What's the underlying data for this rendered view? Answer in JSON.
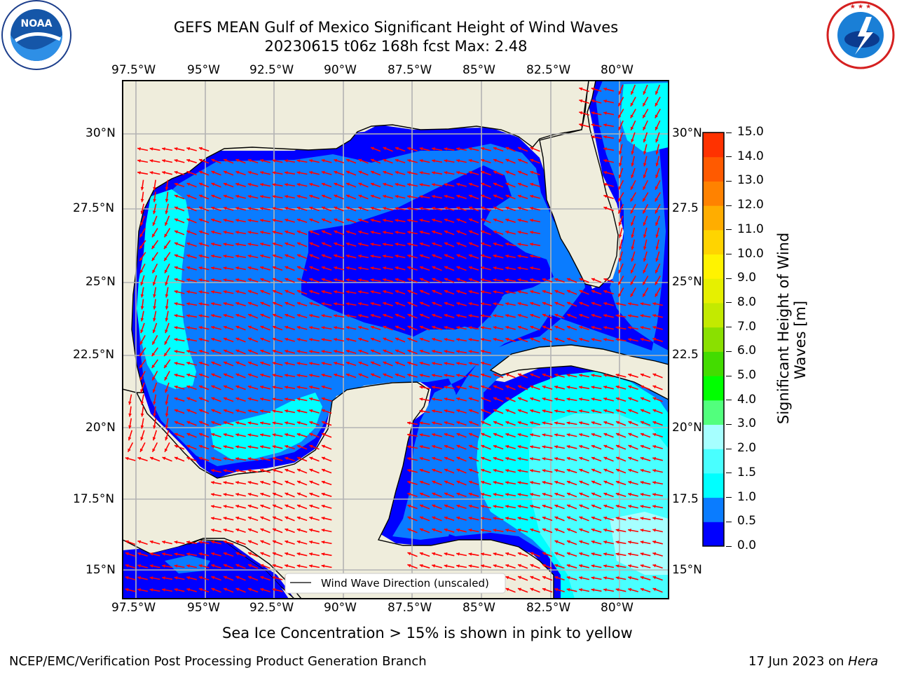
{
  "header": {
    "title_line1": "GEFS MEAN Gulf of Mexico Significant Height of Wind Waves",
    "title_line2": "20230615 t06z 168h fcst   Max: 2.48"
  },
  "logos": {
    "left": {
      "name": "noaa-logo",
      "text": "NOAA",
      "ring_text": "NATIONAL OCEANIC AND ATMOSPHERIC ADMINISTRATION · U.S. DEPARTMENT OF COMMERCE"
    },
    "right": {
      "name": "nws-logo",
      "ring_text": "NATIONAL WEATHER SERVICE"
    }
  },
  "map": {
    "lon_labels": [
      "97.5°W",
      "95°W",
      "92.5°W",
      "90°W",
      "87.5°W",
      "85°W",
      "82.5°W",
      "80°W"
    ],
    "lat_labels_left": [
      "30°N",
      "27.5°N",
      "25°N",
      "22.5°N",
      "20°N",
      "17.5°N",
      "15°N"
    ],
    "lat_labels_right": [
      "30°N",
      "27.5",
      "25°N",
      "22.5",
      "20°N",
      "17.5",
      "15°N"
    ],
    "legend_label": "Wind Wave Direction (unscaled)",
    "colors": {
      "land": "#efeddc",
      "grid": "#b3b3b3",
      "arrow": "#ff0000",
      "coast": "#000000"
    }
  },
  "colorbar": {
    "label_line1": "Significant Height of Wind",
    "label_line2": "Waves [m]",
    "ticks": [
      "0.0",
      "0.5",
      "1.0",
      "1.5",
      "2.0",
      "3.0",
      "4.0",
      "5.0",
      "6.0",
      "7.0",
      "8.0",
      "9.0",
      "10.0",
      "11.0",
      "12.0",
      "13.0",
      "14.0",
      "15.0"
    ],
    "colors": [
      "#0000ff",
      "#0a7cff",
      "#00ffff",
      "#49ffff",
      "#a6ffff",
      "#52ff7d",
      "#00ff00",
      "#43dc00",
      "#8ae000",
      "#c3ea00",
      "#e6f000",
      "#fff300",
      "#ffd400",
      "#ffad00",
      "#ff8200",
      "#ff5a00",
      "#ff3200"
    ]
  },
  "note": "Sea Ice Concentration > 15% is shown in pink to yellow",
  "footer": {
    "left": "NCEP/EMC/Verification Post Processing Product Generation Branch",
    "right_prefix": "17 Jun 2023 on ",
    "right_host": "Hera"
  }
}
